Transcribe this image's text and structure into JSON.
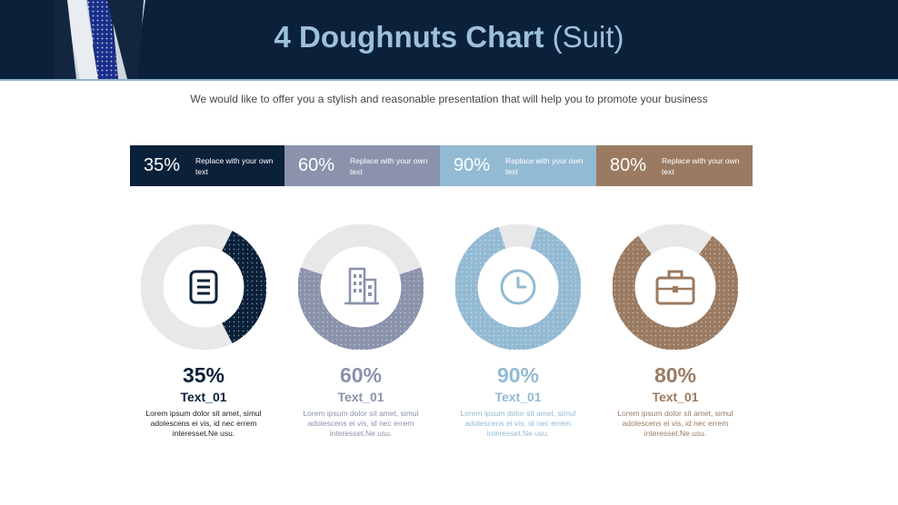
{
  "title": {
    "main": "4 Doughnuts Chart",
    "suffix": "(Suit)"
  },
  "subtitle": "We would like to offer you a stylish and reasonable presentation that will help you to promote your business",
  "bands": [
    {
      "pct": "35%",
      "text": "Replace with your own text",
      "color": "#0b213a"
    },
    {
      "pct": "60%",
      "text": "Replace with your own text",
      "color": "#8a93ab"
    },
    {
      "pct": "90%",
      "text": "Replace with your own text",
      "color": "#93bad3"
    },
    {
      "pct": "80%",
      "text": "Replace with your own text",
      "color": "#9a7b62"
    }
  ],
  "chart_data": {
    "type": "pie",
    "title": "4 Doughnuts Chart (Suit)",
    "series": [
      {
        "name": "Text_01",
        "value": 35,
        "label": "35%",
        "color": "#0b213a",
        "icon": "document-list-icon"
      },
      {
        "name": "Text_01",
        "value": 60,
        "label": "60%",
        "color": "#8a93ab",
        "icon": "building-icon"
      },
      {
        "name": "Text_01",
        "value": 90,
        "label": "90%",
        "color": "#93bad3",
        "icon": "clock-icon"
      },
      {
        "name": "Text_01",
        "value": 80,
        "label": "80%",
        "color": "#9a7b62",
        "icon": "briefcase-icon"
      }
    ],
    "track_color": "#e8e8e8"
  },
  "stats": [
    {
      "value": "35%",
      "label": "Text_01",
      "body": "Lorem ipsum dolor sit amet, simul adolescens ei vis, id nec errem interesset.Ne usu.",
      "color": "#0b213a",
      "body_color": "#222222"
    },
    {
      "value": "60%",
      "label": "Text_01",
      "body": "Lorem ipsum dolor sit amet, simul adolescens ei vis, id nec errem interesset.Ne usu.",
      "color": "#8a93ab",
      "body_color": "#8a93ab"
    },
    {
      "value": "90%",
      "label": "Text_01",
      "body": "Lorem ipsum dolor sit amet, simul adolescens ei vis, id nec errem interesset.Ne usu.",
      "color": "#93bad3",
      "body_color": "#93bad3"
    },
    {
      "value": "80%",
      "label": "Text_01",
      "body": "Lorem ipsum dolor sit amet, simul adolescens ei vis, id nec errem interesset.Ne usu.",
      "color": "#9a7b62",
      "body_color": "#9a7b62"
    }
  ]
}
